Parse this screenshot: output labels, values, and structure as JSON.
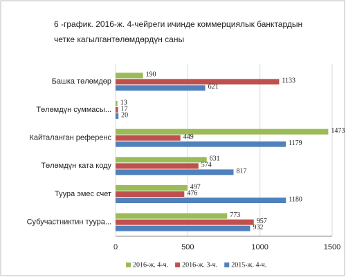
{
  "chart_data": {
    "type": "hbar",
    "title": [
      "6 -график. 2016-ж. 4-чейреги ичинде  коммерциялык банктардын",
      "четке кагылгантөлөмдөрдүн саны"
    ],
    "categories": [
      "Башка төлөмдөр",
      "Төлөмдүн суммасы...",
      "Кайталанган референс",
      "Төлөмдүн ката коду",
      "Туура эмес счет",
      "Субучастниктин туура..."
    ],
    "series": [
      {
        "name": "2016-ж. 4-ч.",
        "color": "#9bbb59",
        "values": [
          190,
          13,
          1473,
          631,
          497,
          773
        ]
      },
      {
        "name": "2016-ж. 3-ч.",
        "color": "#c0504d",
        "values": [
          1133,
          17,
          449,
          574,
          476,
          957
        ]
      },
      {
        "name": "2015-ж. 4-ч.",
        "color": "#4f81bd",
        "values": [
          621,
          20,
          1179,
          817,
          1180,
          932
        ]
      }
    ],
    "xlim": [
      0,
      1500
    ],
    "xticks": [
      0,
      500,
      1000,
      1500
    ],
    "grid": true,
    "legend": "bottom"
  }
}
